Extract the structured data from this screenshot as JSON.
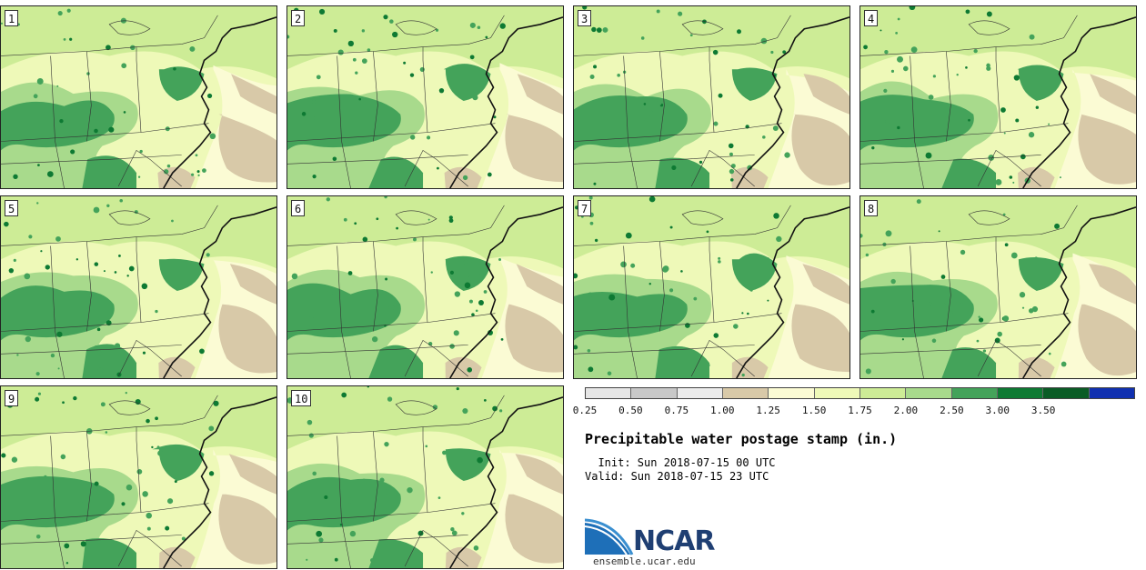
{
  "panels": [
    {
      "label": "1"
    },
    {
      "label": "2"
    },
    {
      "label": "3"
    },
    {
      "label": "4"
    },
    {
      "label": "5"
    },
    {
      "label": "6"
    },
    {
      "label": "7"
    },
    {
      "label": "8"
    },
    {
      "label": "9"
    },
    {
      "label": "10"
    }
  ],
  "colorbar": {
    "colors": [
      "#e6e6e6",
      "#c8c8c8",
      "#ececec",
      "#d8c9a8",
      "#fbfbd4",
      "#eef9b8",
      "#cdec96",
      "#a8da8c",
      "#44a35a",
      "#0e7a33",
      "#0a5c25",
      "#1030b0"
    ],
    "labels": [
      "0.25",
      "0.50",
      "0.75",
      "1.00",
      "1.25",
      "1.50",
      "1.75",
      "2.00",
      "2.50",
      "3.00",
      "3.50"
    ]
  },
  "title": "Precipitable water postage stamp (in.)",
  "init": "  Init: Sun 2018-07-15 00 UTC",
  "valid": "Valid: Sun 2018-07-15 23 UTC",
  "logo": {
    "word": "NCAR",
    "url": "ensemble.ucar.edu"
  }
}
